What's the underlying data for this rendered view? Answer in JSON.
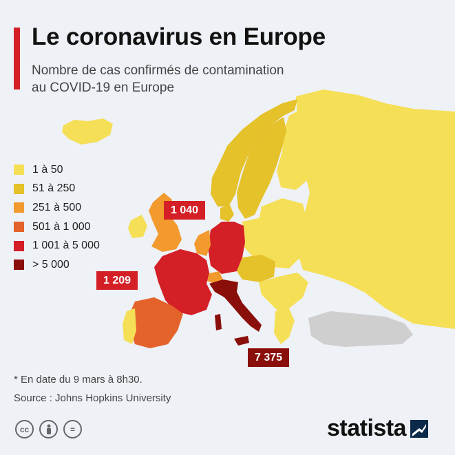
{
  "header": {
    "title": "Le coronavirus en Europe",
    "subtitle_line1": "Nombre de cas confirmés de contamination",
    "subtitle_line2": "au COVID-19 en Europe"
  },
  "legend": [
    {
      "label": "1 à 50",
      "color": "#f5df57"
    },
    {
      "label": "51 à 250",
      "color": "#e5c12a"
    },
    {
      "label": "251 à 500",
      "color": "#f29a2e"
    },
    {
      "label": "501 à 1 000",
      "color": "#e4632a"
    },
    {
      "label": "1 001 à 5 000",
      "color": "#d41f26"
    },
    {
      "label": "> 5 000",
      "color": "#8a0f0a"
    }
  ],
  "callouts": {
    "germany": "1 040",
    "france": "1 209",
    "italy": "7 375"
  },
  "colors": {
    "no_data": "#cfcfcf",
    "background": "#eef1f6",
    "accent": "#d41f26"
  },
  "footer": {
    "note": "* En date du 9 mars à 8h30.",
    "source": "Source : Johns Hopkins University",
    "brand": "statista",
    "license_icons": [
      "cc-icon",
      "by-icon",
      "nd-icon"
    ]
  }
}
